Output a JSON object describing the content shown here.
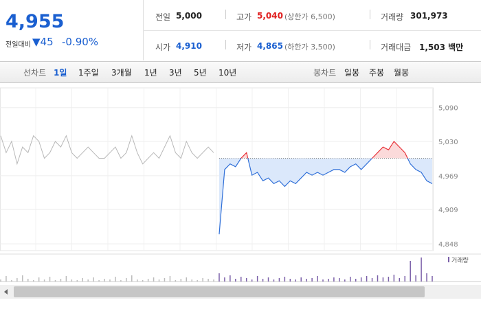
{
  "header": {
    "price": "4,955",
    "change_label": "전일대비",
    "change": "▼45",
    "change_pct": "-0.90%",
    "fields": [
      {
        "label": "전일",
        "value": "5,000"
      },
      {
        "label": "고가",
        "value": "5,040",
        "note": "(상한가 6,500)"
      },
      {
        "label": "거래량",
        "value": "301,973"
      },
      {
        "label": "시가",
        "value": "4,910"
      },
      {
        "label": "저가",
        "value": "4,865",
        "note": "(하한가 3,500)"
      },
      {
        "label": "거래대금",
        "value": "1,503 백만"
      }
    ]
  },
  "tabs": {
    "line_label": "선차트",
    "line": [
      "1일",
      "1주일",
      "3개월",
      "1년",
      "3년",
      "5년",
      "10년"
    ],
    "candle_label": "봉차트",
    "candle": [
      "일봉",
      "주봉",
      "월봉"
    ]
  },
  "chart_data": {
    "type": "line",
    "baseline": 5000,
    "ylim": [
      4836,
      5125
    ],
    "yticks": [
      {
        "value": 5090,
        "label": "5,090"
      },
      {
        "value": 5030,
        "label": "5,030"
      },
      {
        "value": 4969,
        "label": "4,969"
      },
      {
        "value": 4909,
        "label": "4,909"
      },
      {
        "value": 4848,
        "label": "4,848"
      }
    ],
    "x": [
      0,
      1,
      2,
      3,
      4,
      5,
      6,
      7,
      8,
      9,
      10,
      11,
      12,
      13,
      14,
      15,
      16,
      17,
      18,
      19,
      20,
      21,
      22,
      23,
      24,
      25,
      26,
      27,
      28,
      29,
      30,
      31,
      32,
      33,
      34,
      35,
      36,
      37,
      38,
      39,
      40,
      41,
      42,
      43,
      44,
      45,
      46,
      47,
      48,
      49,
      50,
      51,
      52,
      53,
      54,
      55,
      56,
      57,
      58,
      59,
      60,
      61,
      62,
      63,
      64,
      65,
      66,
      67,
      68,
      69,
      70,
      71,
      72,
      73,
      74,
      75,
      76,
      77,
      78,
      79
    ],
    "series": [
      {
        "color": "#b8b8b8",
        "values": [
          5040,
          5010,
          5030,
          4990,
          5020,
          5010,
          5040,
          5030,
          5000,
          5010,
          5030,
          5020,
          5040,
          5010,
          5000,
          5010,
          5020,
          5010,
          5000,
          5000,
          5010,
          5020,
          5000,
          5010,
          5040,
          5010,
          4990,
          5000,
          5010,
          5000,
          5020,
          5040,
          5010,
          5000,
          5030,
          5010,
          5000,
          5010,
          5020,
          5010,
          null,
          null,
          null,
          null,
          null,
          null,
          null,
          null,
          null,
          null,
          null,
          null,
          null,
          null,
          null,
          null,
          null,
          null,
          null,
          null,
          null,
          null,
          null,
          null,
          null,
          null,
          null,
          null,
          null,
          null,
          null,
          null,
          null,
          null,
          null,
          null,
          null,
          null,
          null,
          null
        ]
      },
      {
        "color": "#2f6fd8",
        "up_color": "#e8333a",
        "values": [
          null,
          null,
          null,
          null,
          null,
          null,
          null,
          null,
          null,
          null,
          null,
          null,
          null,
          null,
          null,
          null,
          null,
          null,
          null,
          null,
          null,
          null,
          null,
          null,
          null,
          null,
          null,
          null,
          null,
          null,
          null,
          null,
          null,
          null,
          null,
          null,
          null,
          null,
          null,
          null,
          4865,
          4980,
          4990,
          4985,
          5000,
          5010,
          4970,
          4975,
          4960,
          4965,
          4955,
          4960,
          4950,
          4960,
          4955,
          4965,
          4975,
          4970,
          4975,
          4970,
          4975,
          4980,
          4980,
          4975,
          4985,
          4990,
          4980,
          4990,
          5000,
          5010,
          5020,
          5015,
          5030,
          5020,
          5010,
          4990,
          4980,
          4975,
          4960,
          4955
        ]
      }
    ],
    "volume": {
      "legend": "거래량",
      "color": "#7a5fa8",
      "gray": "#bbbbbb",
      "values": [
        3,
        8,
        2,
        5,
        9,
        4,
        2,
        6,
        3,
        7,
        2,
        4,
        8,
        3,
        2,
        5,
        3,
        6,
        2,
        4,
        3,
        7,
        2,
        5,
        9,
        3,
        2,
        4,
        6,
        3,
        5,
        8,
        2,
        4,
        6,
        3,
        2,
        5,
        4,
        3,
        12,
        6,
        9,
        4,
        7,
        5,
        3,
        8,
        4,
        6,
        3,
        5,
        7,
        4,
        3,
        6,
        4,
        5,
        8,
        3,
        4,
        6,
        5,
        3,
        7,
        4,
        6,
        8,
        5,
        9,
        6,
        7,
        10,
        5,
        8,
        30,
        9,
        35,
        12,
        8
      ]
    }
  }
}
